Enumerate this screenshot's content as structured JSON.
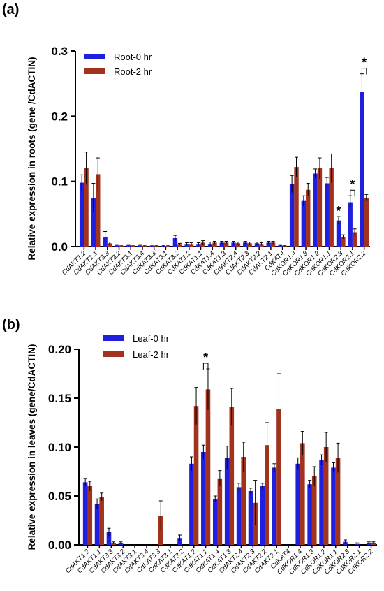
{
  "colors": {
    "series0": "#1f1fe0",
    "series1": "#a0321e",
    "text": "#000000"
  },
  "chart_data": [
    {
      "type": "bar",
      "panel_label": "(a)",
      "ylabel": "Relative expression in roots (gene /CdACTIN)",
      "ylim": [
        0,
        0.3
      ],
      "yticks": [
        0.0,
        0.1,
        0.2,
        0.3
      ],
      "ytick_labels": [
        "0.0",
        "0.1",
        "0.2",
        "0.3"
      ],
      "categories": [
        "CdAKT1.2",
        "CdAKT1.1",
        "CdAKT3.3",
        "CdAKT3.2",
        "CdAKT3.1",
        "CdAKT3.4",
        "CdKAT3.3",
        "CdKAT3.1",
        "CdKAT3.2",
        "CdKAT1.2",
        "CdKAT1.1",
        "CdKAT1.4",
        "CdKAT1.3",
        "CdAKT2.4",
        "CdAKT2.3",
        "CdAKT2.2",
        "CdAKT2.1",
        "CdKAT4",
        "CdKOR1.4",
        "CdKOR1.3",
        "CdKOR1.2",
        "CdKOR1.1",
        "CdKOR2.3",
        "CdKOR2.1",
        "CdKOR2.2"
      ],
      "series": [
        {
          "name": "Root-0 hr",
          "values": [
            0.098,
            0.075,
            0.015,
            0.002,
            0.002,
            0.002,
            0.001,
            0.001,
            0.013,
            0.004,
            0.004,
            0.004,
            0.006,
            0.006,
            0.006,
            0.005,
            0.006,
            0.002,
            0.096,
            0.07,
            0.112,
            0.097,
            0.04,
            0.068,
            0.237
          ],
          "errors": [
            0.012,
            0.022,
            0.008,
            0.001,
            0.001,
            0.001,
            0.001,
            0.001,
            0.004,
            0.002,
            0.002,
            0.003,
            0.002,
            0.002,
            0.002,
            0.002,
            0.002,
            0.001,
            0.013,
            0.008,
            0.007,
            0.009,
            0.006,
            0.01,
            0.028
          ]
        },
        {
          "name": "Root-2 hr",
          "values": [
            0.12,
            0.111,
            0.005,
            0.001,
            0.001,
            0.001,
            0.001,
            0.001,
            0.004,
            0.004,
            0.006,
            0.006,
            0.006,
            0.005,
            0.005,
            0.004,
            0.006,
            0.001,
            0.122,
            0.087,
            0.12,
            0.12,
            0.015,
            0.022,
            0.075
          ],
          "errors": [
            0.025,
            0.025,
            0.002,
            0.001,
            0.001,
            0.001,
            0.001,
            0.001,
            0.001,
            0.002,
            0.003,
            0.002,
            0.002,
            0.002,
            0.002,
            0.002,
            0.002,
            0.001,
            0.015,
            0.01,
            0.016,
            0.022,
            0.003,
            0.005,
            0.005
          ]
        }
      ],
      "legend": {
        "placement": "top-left",
        "entries": [
          "Root-0 hr",
          "Root-2 hr"
        ]
      },
      "annotations": [
        {
          "text": "*",
          "category": "CdKOR2.3",
          "type": "single"
        },
        {
          "text": "*",
          "category": "CdKOR2.1",
          "type": "bracket"
        },
        {
          "text": "*",
          "category": "CdKOR2.2",
          "type": "bracket"
        }
      ]
    },
    {
      "type": "bar",
      "panel_label": "(b)",
      "ylabel": "Relative expression in leaves (gene/CdACTIN)",
      "ylim": [
        0,
        0.2
      ],
      "yticks": [
        0.0,
        0.05,
        0.1,
        0.15,
        0.2
      ],
      "ytick_labels": [
        "0.00",
        "0.05",
        "0.10",
        "0.15",
        "0.20"
      ],
      "categories": [
        "CdAKT1.2",
        "CdAKT1.1",
        "CdAKT3.3",
        "CdAKT3.2",
        "CdAKT3.1",
        "CdAKT3.4",
        "CdKAT3.3",
        "CdKAT3.1",
        "CdKAT3.2",
        "CdKAT1.2",
        "CdKAT1.1",
        "CdKAT1.4",
        "CdKAT1.3",
        "CdAKT2.4",
        "CdAKT2.3",
        "CdAKT2.2",
        "CdAKT2.1",
        "CdKAT4",
        "CdKOR1.4",
        "CdKOR1.3",
        "CdKOR1.2",
        "CdKOR1.1",
        "CdKOR2.3",
        "CdKOR2.1",
        "CdKOR2.2"
      ],
      "series": [
        {
          "name": "Leaf-0 hr",
          "values": [
            0.064,
            0.042,
            0.013,
            0.002,
            0,
            0,
            0,
            0,
            0.007,
            0.083,
            0.095,
            0.047,
            0.089,
            0.059,
            0.055,
            0.06,
            0.079,
            0,
            0.083,
            0.062,
            0.087,
            0.079,
            0.003,
            0.001,
            0.002
          ],
          "errors": [
            0.004,
            0.005,
            0.004,
            0.001,
            0,
            0,
            0,
            0,
            0.003,
            0.007,
            0.007,
            0.003,
            0.012,
            0.004,
            0.003,
            0.003,
            0.004,
            0,
            0.006,
            0.004,
            0.005,
            0.005,
            0.002,
            0.001,
            0.001
          ]
        },
        {
          "name": "Leaf-2 hr",
          "values": [
            0.06,
            0.049,
            0.002,
            0,
            0,
            0,
            0.03,
            0,
            0,
            0.142,
            0.159,
            0.068,
            0.141,
            0.09,
            0.043,
            0.102,
            0.139,
            0,
            0.104,
            0.07,
            0.1,
            0.089,
            0,
            0,
            0.002
          ],
          "errors": [
            0.005,
            0.004,
            0.001,
            0,
            0,
            0,
            0.015,
            0,
            0,
            0.019,
            0.021,
            0.008,
            0.019,
            0.015,
            0.023,
            0.023,
            0.036,
            0,
            0.012,
            0.01,
            0.015,
            0.015,
            0,
            0,
            0.001
          ]
        }
      ],
      "legend": {
        "placement": "top-left",
        "entries": [
          "Leaf-0 hr",
          "Leaf-2 hr"
        ]
      },
      "annotations": [
        {
          "text": "*",
          "category": "CdKAT1.1",
          "type": "bracket"
        }
      ]
    }
  ]
}
